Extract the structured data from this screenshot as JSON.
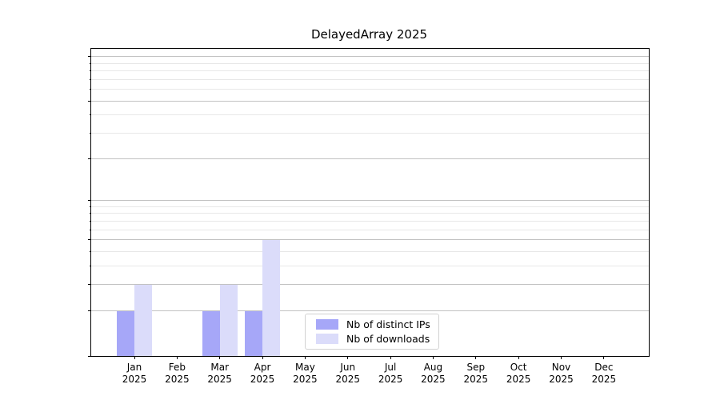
{
  "chart_data": {
    "type": "bar",
    "title": "DelayedArray 2025",
    "categories": [
      "Jan",
      "Feb",
      "Mar",
      "Apr",
      "May",
      "Jun",
      "Jul",
      "Aug",
      "Sep",
      "Oct",
      "Nov",
      "Dec"
    ],
    "year_label": "2025",
    "series": [
      {
        "name": "Nb of distinct IPs",
        "color": "#a6a7f8",
        "values": [
          1,
          0,
          1,
          1,
          0,
          0,
          0,
          0,
          0,
          0,
          0,
          0
        ]
      },
      {
        "name": "Nb of downloads",
        "color": "#dbdcfa",
        "values": [
          2,
          0,
          2,
          5,
          0,
          0,
          0,
          0,
          0,
          0,
          0,
          0
        ]
      }
    ],
    "xlabel": "",
    "ylabel": "",
    "y_scale": "log1p",
    "ylim": [
      0,
      113
    ],
    "y_major_ticks": [
      0,
      1,
      2,
      5,
      10,
      20,
      50,
      100
    ],
    "y_minor_ticks": [
      3,
      4,
      6,
      7,
      8,
      9,
      30,
      40,
      60,
      70,
      80,
      90
    ],
    "grid": "both",
    "legend_position": "inside lower center-right"
  }
}
